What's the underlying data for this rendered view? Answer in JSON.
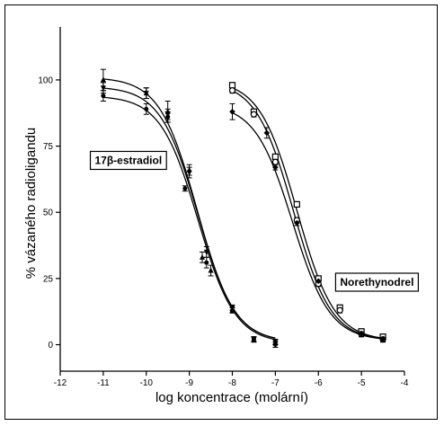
{
  "chart_data": {
    "type": "scatter",
    "title": "",
    "xlabel": "log koncentrace (molární)",
    "ylabel": "% vázaného radioligandu",
    "xlim": [
      -12,
      -4
    ],
    "ylim": [
      -10,
      120
    ],
    "x_ticks": [
      -12,
      -11,
      -10,
      -9,
      -8,
      -7,
      -6,
      -5,
      -4
    ],
    "x_tick_labels": [
      "-12",
      "-11",
      "-10",
      "-9",
      "-8",
      "-7",
      "-6",
      "-5",
      "-4"
    ],
    "y_ticks": [
      0,
      25,
      50,
      75,
      100
    ],
    "y_tick_labels": [
      "0",
      "25",
      "50",
      "75",
      "100"
    ],
    "grid": false,
    "legend": "none",
    "colors": {
      "ink": "#000000",
      "background": "#ffffff"
    },
    "annotations": [
      {
        "text": "17β-estradiol",
        "at": [
          -11.3,
          73
        ]
      },
      {
        "text": "Norethynodrel",
        "at": [
          -5.6,
          27
        ]
      }
    ],
    "series": [
      {
        "group": "17β-estradiol",
        "marker": "triangle-up",
        "x": [
          -11,
          -10,
          -9.5,
          -9,
          -8.7,
          -8.5,
          -8,
          -7.5,
          -7
        ],
        "y": [
          100,
          95,
          88,
          66,
          33,
          28,
          13,
          2,
          1
        ],
        "err": [
          4,
          2,
          4,
          2,
          2,
          2,
          1,
          1,
          1
        ],
        "curve": {
          "top": 101,
          "bottom": 1,
          "log_ec50": -8.82,
          "hill": 1
        }
      },
      {
        "group": "17β-estradiol",
        "marker": "triangle-down",
        "x": [
          -11,
          -10,
          -9.5,
          -9,
          -8.6,
          -8,
          -7.5,
          -7
        ],
        "y": [
          97,
          95,
          87,
          65,
          35,
          14,
          2,
          1
        ],
        "err": [
          2,
          2,
          2,
          2,
          2,
          1,
          1,
          1
        ],
        "curve": {
          "top": 97.5,
          "bottom": 1,
          "log_ec50": -8.8,
          "hill": 1
        }
      },
      {
        "group": "17β-estradiol",
        "marker": "circle",
        "x": [
          -11,
          -10,
          -9.5,
          -9.1,
          -8.6,
          -8,
          -7.5,
          -7
        ],
        "y": [
          94,
          89,
          86,
          59,
          31,
          13,
          2,
          0
        ],
        "err": [
          2,
          2,
          2,
          1,
          2,
          1,
          1,
          1
        ],
        "curve": {
          "top": 94,
          "bottom": 0.5,
          "log_ec50": -8.8,
          "hill": 1
        }
      },
      {
        "group": "Norethynodrel",
        "marker": "square",
        "x": [
          -8,
          -7.5,
          -7,
          -6.5,
          -6,
          -5.5,
          -5,
          -4.5
        ],
        "y": [
          98,
          88,
          71,
          53,
          25,
          14,
          5,
          3
        ],
        "err": [
          1,
          1,
          1,
          1,
          1,
          1,
          1,
          1
        ],
        "curve": {
          "top": 100,
          "bottom": 1.5,
          "log_ec50": -6.5,
          "hill": 1
        }
      },
      {
        "group": "Norethynodrel",
        "marker": "circle-open",
        "x": [
          -8,
          -7.5,
          -7,
          -6.5,
          -6,
          -5.5,
          -5,
          -4.5
        ],
        "y": [
          96,
          87,
          69,
          47,
          23,
          13,
          4,
          2
        ],
        "err": [
          1,
          1,
          1,
          1,
          1,
          1,
          1,
          1
        ],
        "curve": {
          "top": 99.5,
          "bottom": 1.5,
          "log_ec50": -6.58,
          "hill": 1
        }
      },
      {
        "group": "Norethynodrel",
        "marker": "diamond",
        "x": [
          -8,
          -7.2,
          -7,
          -6.5,
          -6,
          -5,
          -4.5
        ],
        "y": [
          88,
          80,
          67,
          46,
          24,
          4,
          2
        ],
        "err": [
          3,
          2,
          1,
          1,
          1,
          1,
          1
        ],
        "curve": {
          "top": 91,
          "bottom": 1.5,
          "log_ec50": -6.6,
          "hill": 1
        }
      }
    ]
  }
}
